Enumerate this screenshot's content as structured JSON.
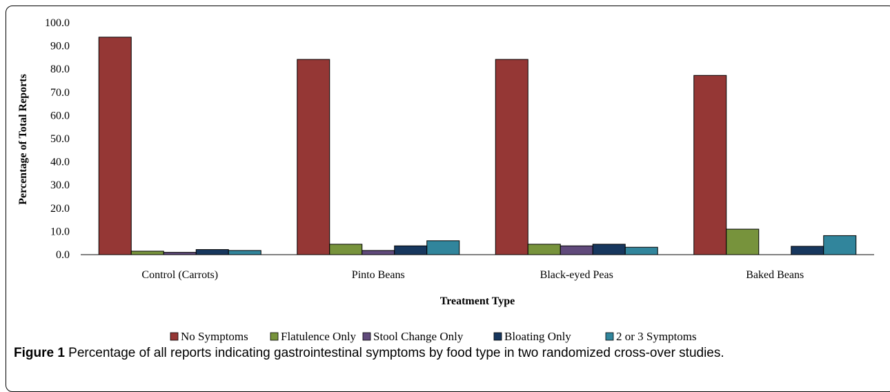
{
  "chart_data": {
    "type": "bar",
    "categories": [
      "Control (Carrots)",
      "Pinto Beans",
      "Black-eyed Peas",
      "Baked Beans"
    ],
    "series": [
      {
        "name": "No Symptoms",
        "color": "#953735",
        "values": [
          93.8,
          84.2,
          84.2,
          77.3
        ]
      },
      {
        "name": "Flatulence Only",
        "color": "#77933C",
        "values": [
          1.5,
          4.5,
          4.5,
          11.0
        ]
      },
      {
        "name": "Stool Change Only",
        "color": "#604A7B",
        "values": [
          1.0,
          1.8,
          3.8,
          0.0
        ]
      },
      {
        "name": "Bloating Only",
        "color": "#17375E",
        "values": [
          2.2,
          3.8,
          4.5,
          3.6
        ]
      },
      {
        "name": "2 or 3 Symptoms",
        "color": "#31859C",
        "values": [
          1.8,
          6.0,
          3.2,
          8.2
        ]
      }
    ],
    "ylim": [
      0,
      100
    ],
    "ytick_step": 10,
    "ytick_labels": [
      "0.0",
      "10.0",
      "20.0",
      "30.0",
      "40.0",
      "50.0",
      "60.0",
      "70.0",
      "80.0",
      "90.0",
      "100.0"
    ],
    "xlabel": "Treatment Type",
    "ylabel": "Percentage of Total Reports",
    "legend_position": "bottom",
    "grid": false
  },
  "caption": {
    "label": "Figure 1",
    "text": " Percentage of all reports indicating gastrointestinal symptoms by food type in two randomized cross-over studies."
  }
}
